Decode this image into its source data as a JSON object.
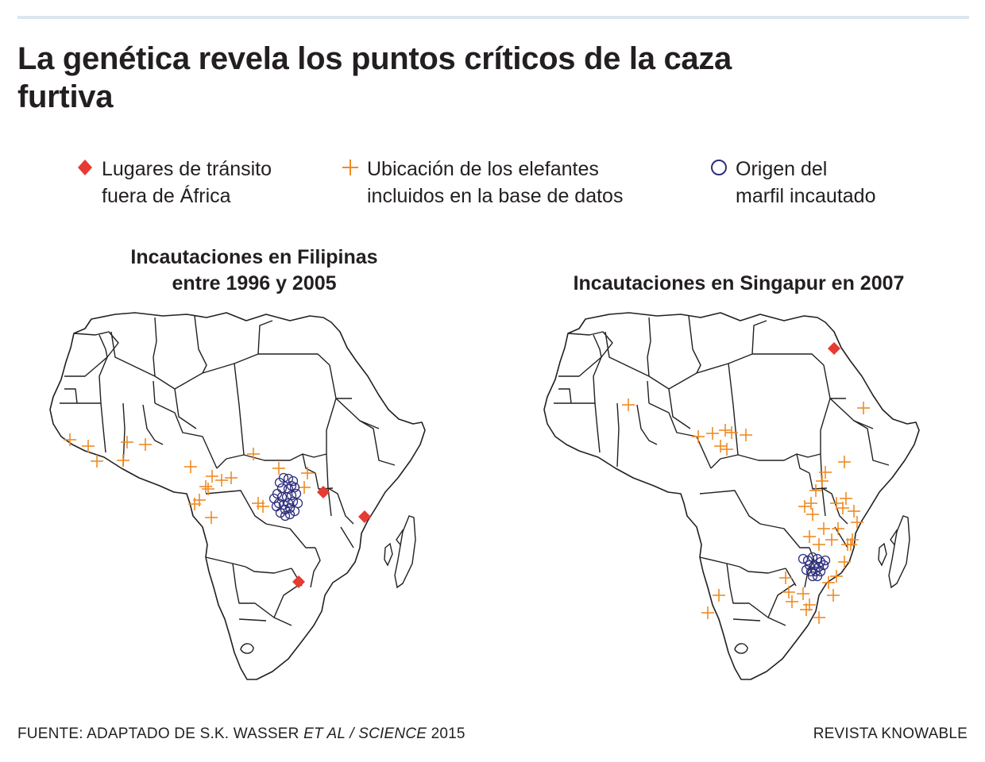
{
  "title": "La genética revela los puntos críticos de la caza furtiva",
  "legend": [
    {
      "symbol": "diamond",
      "color": "#e63a32",
      "label_line1": "Lugares de tránsito",
      "label_line2": "fuera de África"
    },
    {
      "symbol": "plus",
      "color": "#f08a24",
      "label_line1": "Ubicación de los elefantes",
      "label_line2": "incluidos en la base de datos"
    },
    {
      "symbol": "circle",
      "color": "#2e2f7e",
      "label_line1": "Origen del",
      "label_line2": "marfil incautado"
    }
  ],
  "maps": [
    {
      "title_line1": "Incautaciones en Filipinas",
      "title_line2": "entre 1996 y 2005"
    },
    {
      "title_line1": "Incautaciones en Singapur en 2007",
      "title_line2": ""
    }
  ],
  "footer": {
    "source_prefix": "FUENTE: ADAPTADO DE S.K. WASSER ",
    "source_italic": "ET AL / SCIENCE",
    "source_year": " 2015",
    "credit": "REVISTA KNOWABLE"
  },
  "colors": {
    "diamond": "#e63a32",
    "plus": "#f08a24",
    "circle": "#2e2f7e",
    "borders": "#231f20",
    "rule": "#dbe7ee"
  }
}
